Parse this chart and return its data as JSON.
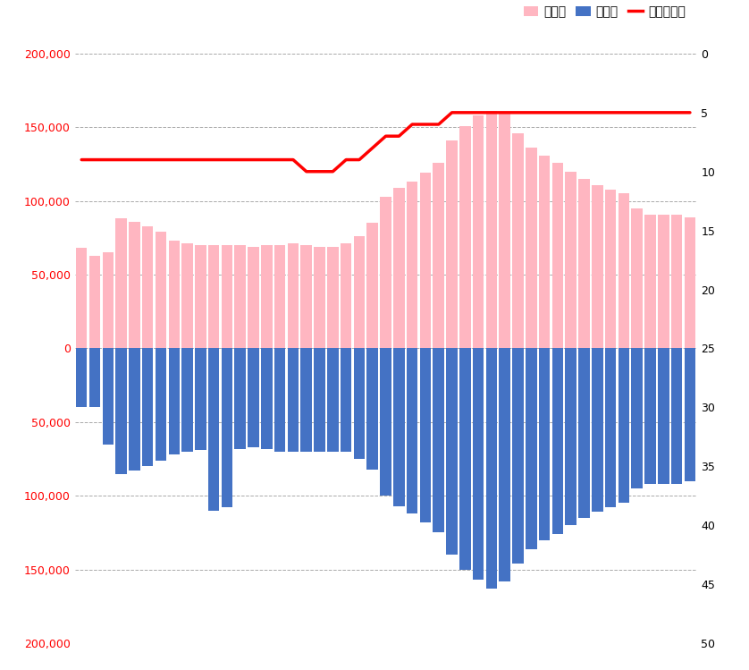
{
  "legend_labels": [
    "女の子",
    "男の子",
    "ランキング"
  ],
  "girls_color": "#FFB6C1",
  "boys_color": "#4472C4",
  "ranking_color": "#FF0000",
  "background_color": "#FFFFFF",
  "ylim_left": [
    -200000,
    200000
  ],
  "ylim_right": [
    50,
    0
  ],
  "yticks_left": [
    -200000,
    -150000,
    -100000,
    -50000,
    0,
    50000,
    100000,
    150000,
    200000
  ],
  "yticks_right": [
    0,
    5,
    10,
    15,
    20,
    25,
    30,
    35,
    40,
    45,
    50
  ],
  "girls_values": [
    68000,
    63000,
    65000,
    88000,
    86000,
    83000,
    79000,
    73000,
    71000,
    70000,
    70000,
    70000,
    70000,
    69000,
    70000,
    70000,
    71000,
    70000,
    69000,
    69000,
    71000,
    76000,
    85000,
    103000,
    109000,
    113000,
    119000,
    126000,
    141000,
    151000,
    158000,
    161000,
    159000,
    146000,
    136000,
    131000,
    126000,
    120000,
    115000,
    111000,
    108000,
    105000,
    95000,
    91000,
    91000,
    91000,
    89000
  ],
  "boys_values": [
    -40000,
    -40000,
    -65000,
    -85000,
    -83000,
    -80000,
    -76000,
    -72000,
    -70000,
    -69000,
    -110000,
    -108000,
    -68000,
    -67000,
    -68000,
    -70000,
    -70000,
    -70000,
    -70000,
    -70000,
    -70000,
    -75000,
    -82000,
    -100000,
    -107000,
    -112000,
    -118000,
    -125000,
    -140000,
    -150000,
    -157000,
    -163000,
    -158000,
    -146000,
    -136000,
    -130000,
    -126000,
    -120000,
    -115000,
    -111000,
    -108000,
    -105000,
    -95000,
    -92000,
    -92000,
    -92000,
    -90000
  ],
  "ranking_values": [
    9,
    9,
    9,
    9,
    9,
    9,
    9,
    9,
    9,
    9,
    9,
    9,
    9,
    9,
    9,
    9,
    9,
    10,
    10,
    10,
    9,
    9,
    8,
    7,
    7,
    6,
    6,
    6,
    5,
    5,
    5,
    5,
    5,
    5,
    5,
    5,
    5,
    5,
    5,
    5,
    5,
    5,
    5,
    5,
    5,
    5,
    5
  ]
}
